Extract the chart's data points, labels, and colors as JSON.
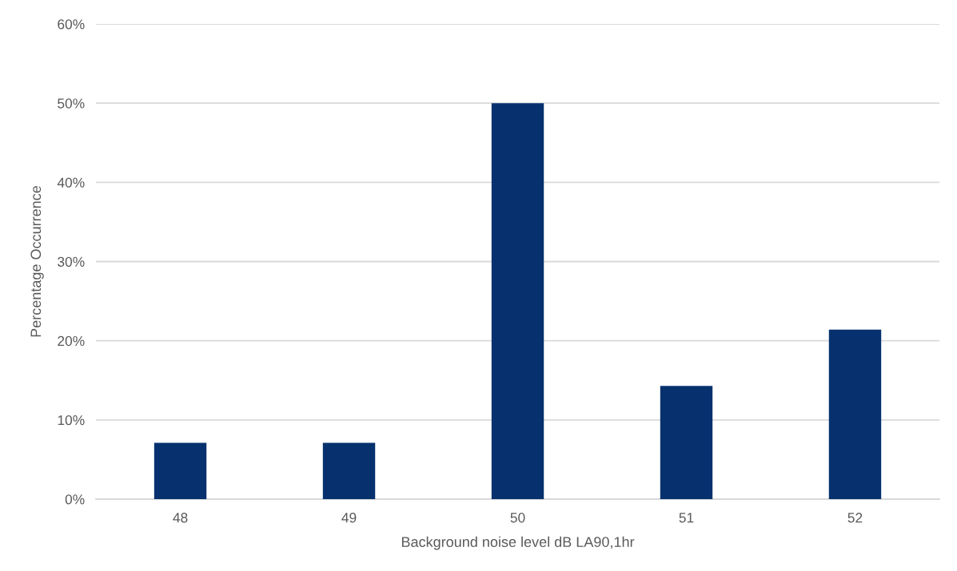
{
  "chart_data": {
    "type": "bar",
    "xlabel": "Background noise level dB LA90,1hr",
    "ylabel": "Percentage Occurrence",
    "categories": [
      "48",
      "49",
      "50",
      "51",
      "52"
    ],
    "values": [
      7.1,
      7.1,
      50,
      14.3,
      21.4
    ],
    "color": "#06316e",
    "ylim": [
      0,
      60
    ],
    "yticks": [
      {
        "value": 0,
        "label": "0%"
      },
      {
        "value": 10,
        "label": "10%"
      },
      {
        "value": 20,
        "label": "20%"
      },
      {
        "value": 30,
        "label": "30%"
      },
      {
        "value": 40,
        "label": "40%"
      },
      {
        "value": 50,
        "label": "50%"
      },
      {
        "value": 60,
        "label": "60%"
      }
    ],
    "grid": "y"
  }
}
